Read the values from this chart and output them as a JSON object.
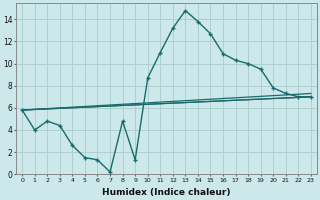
{
  "xlabel": "Humidex (Indice chaleur)",
  "bg_color": "#cce8ea",
  "grid_color": "#aacccc",
  "line_color": "#1a6b6b",
  "xlim": [
    -0.5,
    23.5
  ],
  "ylim": [
    0,
    15.5
  ],
  "xticks": [
    0,
    1,
    2,
    3,
    4,
    5,
    6,
    7,
    8,
    9,
    10,
    11,
    12,
    13,
    14,
    15,
    16,
    17,
    18,
    19,
    20,
    21,
    22,
    23
  ],
  "yticks": [
    0,
    2,
    4,
    6,
    8,
    10,
    12,
    14
  ],
  "main_x": [
    0,
    1,
    2,
    3,
    4,
    5,
    6,
    7,
    8,
    9,
    10,
    11,
    12,
    13,
    14,
    15,
    16,
    17,
    18,
    19,
    20,
    21,
    22,
    23
  ],
  "main_y": [
    5.8,
    4.0,
    4.8,
    4.4,
    2.6,
    1.5,
    1.3,
    0.2,
    4.8,
    1.3,
    8.7,
    11.0,
    13.2,
    14.8,
    13.8,
    12.7,
    10.9,
    10.3,
    10.0,
    9.5,
    7.8,
    7.3,
    7.0,
    7.0
  ],
  "line2_x": [
    0,
    23
  ],
  "line2_y": [
    5.8,
    7.0
  ],
  "line3_x": [
    0,
    23
  ],
  "line3_y": [
    5.8,
    7.3
  ],
  "line4_x": [
    0,
    23
  ],
  "line4_y": [
    5.8,
    7.0
  ]
}
